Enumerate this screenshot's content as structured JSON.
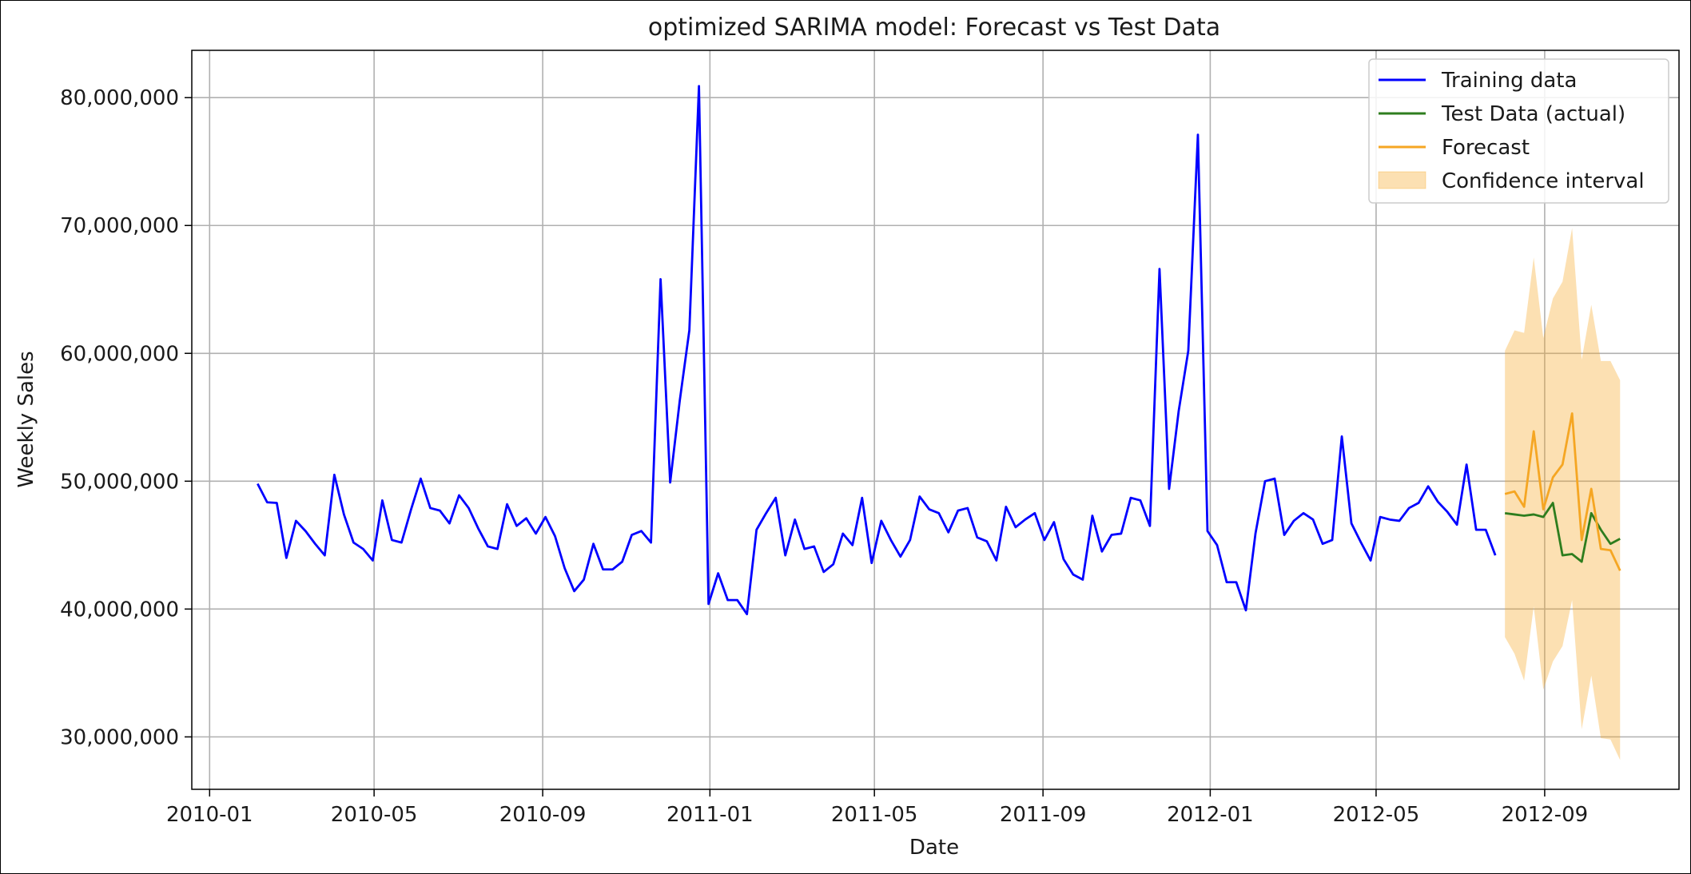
{
  "chart_data": {
    "type": "line",
    "title": "optimized SARIMA model: Forecast vs Test Data",
    "xlabel": "Date",
    "ylabel": "Weekly Sales",
    "x_ticks": [
      "2010-01",
      "2010-05",
      "2010-09",
      "2011-01",
      "2011-05",
      "2011-09",
      "2012-01",
      "2012-05",
      "2012-09"
    ],
    "y_ticks": [
      "30,000,000",
      "40,000,000",
      "50,000,000",
      "60,000,000",
      "70,000,000",
      "80,000,000"
    ],
    "y_tick_values": [
      30000000,
      40000000,
      50000000,
      60000000,
      70000000,
      80000000
    ],
    "ylim": [
      25900000,
      83700000
    ],
    "xlim": [
      "2009-12-19",
      "2012-12-08"
    ],
    "grid": true,
    "legend_position": "top-right",
    "legend": [
      {
        "label": "Training data",
        "kind": "line",
        "color": "#0000ff"
      },
      {
        "label": "Test Data (actual)",
        "kind": "line",
        "color": "#2e7d1e"
      },
      {
        "label": "Forecast",
        "kind": "line",
        "color": "#f5a623"
      },
      {
        "label": "Confidence interval",
        "kind": "patch",
        "color": "#f5a623"
      }
    ],
    "series": [
      {
        "name": "Training data",
        "color": "#0000ff",
        "x": [
          "2010-02-05",
          "2010-02-12",
          "2010-02-19",
          "2010-02-26",
          "2010-03-05",
          "2010-03-12",
          "2010-03-19",
          "2010-03-26",
          "2010-04-02",
          "2010-04-09",
          "2010-04-16",
          "2010-04-23",
          "2010-04-30",
          "2010-05-07",
          "2010-05-14",
          "2010-05-21",
          "2010-05-28",
          "2010-06-04",
          "2010-06-11",
          "2010-06-18",
          "2010-06-25",
          "2010-07-02",
          "2010-07-09",
          "2010-07-16",
          "2010-07-23",
          "2010-07-30",
          "2010-08-06",
          "2010-08-13",
          "2010-08-20",
          "2010-08-27",
          "2010-09-03",
          "2010-09-10",
          "2010-09-17",
          "2010-09-24",
          "2010-10-01",
          "2010-10-08",
          "2010-10-15",
          "2010-10-22",
          "2010-10-29",
          "2010-11-05",
          "2010-11-12",
          "2010-11-19",
          "2010-11-26",
          "2010-12-03",
          "2010-12-10",
          "2010-12-17",
          "2010-12-24",
          "2010-12-31",
          "2011-01-07",
          "2011-01-14",
          "2011-01-21",
          "2011-01-28",
          "2011-02-04",
          "2011-02-11",
          "2011-02-18",
          "2011-02-25",
          "2011-03-04",
          "2011-03-11",
          "2011-03-18",
          "2011-03-25",
          "2011-04-01",
          "2011-04-08",
          "2011-04-15",
          "2011-04-22",
          "2011-04-29",
          "2011-05-06",
          "2011-05-13",
          "2011-05-20",
          "2011-05-27",
          "2011-06-03",
          "2011-06-10",
          "2011-06-17",
          "2011-06-24",
          "2011-07-01",
          "2011-07-08",
          "2011-07-15",
          "2011-07-22",
          "2011-07-29",
          "2011-08-05",
          "2011-08-12",
          "2011-08-19",
          "2011-08-26",
          "2011-09-02",
          "2011-09-09",
          "2011-09-16",
          "2011-09-23",
          "2011-09-30",
          "2011-10-07",
          "2011-10-14",
          "2011-10-21",
          "2011-10-28",
          "2011-11-04",
          "2011-11-11",
          "2011-11-18",
          "2011-11-25",
          "2011-12-02",
          "2011-12-09",
          "2011-12-16",
          "2011-12-23",
          "2011-12-30",
          "2012-01-06",
          "2012-01-13",
          "2012-01-20",
          "2012-01-27",
          "2012-02-03",
          "2012-02-10",
          "2012-02-17",
          "2012-02-24",
          "2012-03-02",
          "2012-03-09",
          "2012-03-16",
          "2012-03-23",
          "2012-03-30",
          "2012-04-06",
          "2012-04-13",
          "2012-04-20",
          "2012-04-27",
          "2012-05-04",
          "2012-05-11",
          "2012-05-18",
          "2012-05-25",
          "2012-06-01",
          "2012-06-08",
          "2012-06-15",
          "2012-06-22",
          "2012-06-29",
          "2012-07-06",
          "2012-07-13",
          "2012-07-20",
          "2012-07-27"
        ],
        "values": [
          49800000,
          48350000,
          48300000,
          44000000,
          46900000,
          46100000,
          45100000,
          44200000,
          50500000,
          47400000,
          45200000,
          44700000,
          43800000,
          48500000,
          45400000,
          45200000,
          47800000,
          50200000,
          47900000,
          47700000,
          46700000,
          48900000,
          47900000,
          46300000,
          44900000,
          44700000,
          48200000,
          46500000,
          47100000,
          45900000,
          47200000,
          45700000,
          43200000,
          41400000,
          42300000,
          45100000,
          43100000,
          43100000,
          43700000,
          45800000,
          46100000,
          45200000,
          65800000,
          49900000,
          56300000,
          61800000,
          80900000,
          40400000,
          42800000,
          40700000,
          40700000,
          39600000,
          46200000,
          47500000,
          48700000,
          44200000,
          47000000,
          44700000,
          44900000,
          42900000,
          43500000,
          45900000,
          45000000,
          48700000,
          43600000,
          46900000,
          45400000,
          44100000,
          45400000,
          48800000,
          47800000,
          47500000,
          46000000,
          47700000,
          47900000,
          45600000,
          45300000,
          43800000,
          48000000,
          46400000,
          47000000,
          47500000,
          45400000,
          46800000,
          43900000,
          42700000,
          42300000,
          47300000,
          44500000,
          45800000,
          45900000,
          48700000,
          48500000,
          46500000,
          66600000,
          49400000,
          55500000,
          60200000,
          77100000,
          46100000,
          45000000,
          42100000,
          42100000,
          39900000,
          45900000,
          50000000,
          50200000,
          45800000,
          46900000,
          47500000,
          47000000,
          45100000,
          45400000,
          53500000,
          46700000,
          45200000,
          43800000,
          47200000,
          47000000,
          46900000,
          47900000,
          48300000,
          49600000,
          48400000,
          47600000,
          46600000,
          51300000,
          46200000,
          46200000,
          44200000
        ]
      },
      {
        "name": "Test Data (actual)",
        "color": "#2e7d1e",
        "x": [
          "2012-08-03",
          "2012-08-10",
          "2012-08-17",
          "2012-08-24",
          "2012-08-31",
          "2012-09-07",
          "2012-09-14",
          "2012-09-21",
          "2012-09-28",
          "2012-10-05",
          "2012-10-12",
          "2012-10-19",
          "2012-10-26"
        ],
        "values": [
          47500000,
          47400000,
          47300000,
          47400000,
          47200000,
          48300000,
          44200000,
          44300000,
          43700000,
          47500000,
          46200000,
          45100000,
          45500000
        ]
      },
      {
        "name": "Forecast",
        "color": "#f5a623",
        "x": [
          "2012-08-03",
          "2012-08-10",
          "2012-08-17",
          "2012-08-24",
          "2012-08-31",
          "2012-09-07",
          "2012-09-14",
          "2012-09-21",
          "2012-09-28",
          "2012-10-05",
          "2012-10-12",
          "2012-10-19",
          "2012-10-26"
        ],
        "values": [
          49000000,
          49200000,
          48000000,
          53900000,
          47800000,
          50300000,
          51300000,
          55300000,
          45400000,
          49400000,
          44700000,
          44600000,
          43000000
        ]
      }
    ],
    "confidence_interval": {
      "name": "Confidence interval",
      "color": "#f5a623",
      "x": [
        "2012-08-03",
        "2012-08-10",
        "2012-08-17",
        "2012-08-24",
        "2012-08-31",
        "2012-09-07",
        "2012-09-14",
        "2012-09-21",
        "2012-09-28",
        "2012-10-05",
        "2012-10-12",
        "2012-10-19",
        "2012-10-26"
      ],
      "upper": [
        60200000,
        61800000,
        61600000,
        67500000,
        61200000,
        64300000,
        65600000,
        69800000,
        59500000,
        63800000,
        59400000,
        59400000,
        57900000
      ],
      "lower": [
        37800000,
        36500000,
        34400000,
        40200000,
        33700000,
        35900000,
        37100000,
        40700000,
        30600000,
        34800000,
        29900000,
        29800000,
        28200000
      ]
    }
  }
}
